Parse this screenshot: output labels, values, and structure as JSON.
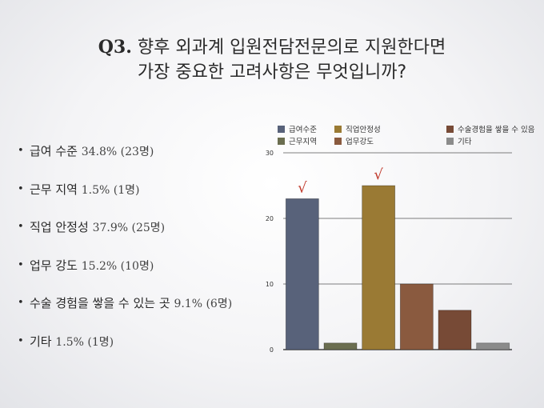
{
  "slide": {
    "title_q": "Q3.",
    "title_line1": "향후 외과계 입원전담전문의로 지원한다면",
    "title_line2": "가장 중요한 고려사항은 무엇입니까?"
  },
  "bullets": [
    {
      "label": "급여 수준",
      "stat": "34.8% (23명)"
    },
    {
      "label": "근무 지역",
      "stat": "1.5% (1명)"
    },
    {
      "label": "직업 안정성",
      "stat": "37.9% (25명)"
    },
    {
      "label": "업무 강도",
      "stat": "15.2% (10명)"
    },
    {
      "label": "수술 경험을 쌓을 수 있는 곳",
      "stat": "9.1% (6명)"
    },
    {
      "label": "기타",
      "stat": "1.5% (1명)"
    }
  ],
  "chart_data": {
    "type": "bar",
    "categories": [
      "급여수준",
      "근무지역",
      "직업안정성",
      "업무강도",
      "수술경험을 쌓을 수 있음",
      "기타"
    ],
    "values": [
      23,
      1,
      25,
      10,
      6,
      1
    ],
    "colors": [
      "#58627a",
      "#6b6e50",
      "#9a7a34",
      "#8a5a3f",
      "#774a36",
      "#8b8b8b"
    ],
    "ylim": [
      0,
      30
    ],
    "yticks": [
      0,
      10,
      20,
      30
    ],
    "grid": true,
    "legend_position": "top",
    "highlighted": [
      0,
      2
    ],
    "check_mark": "√"
  }
}
